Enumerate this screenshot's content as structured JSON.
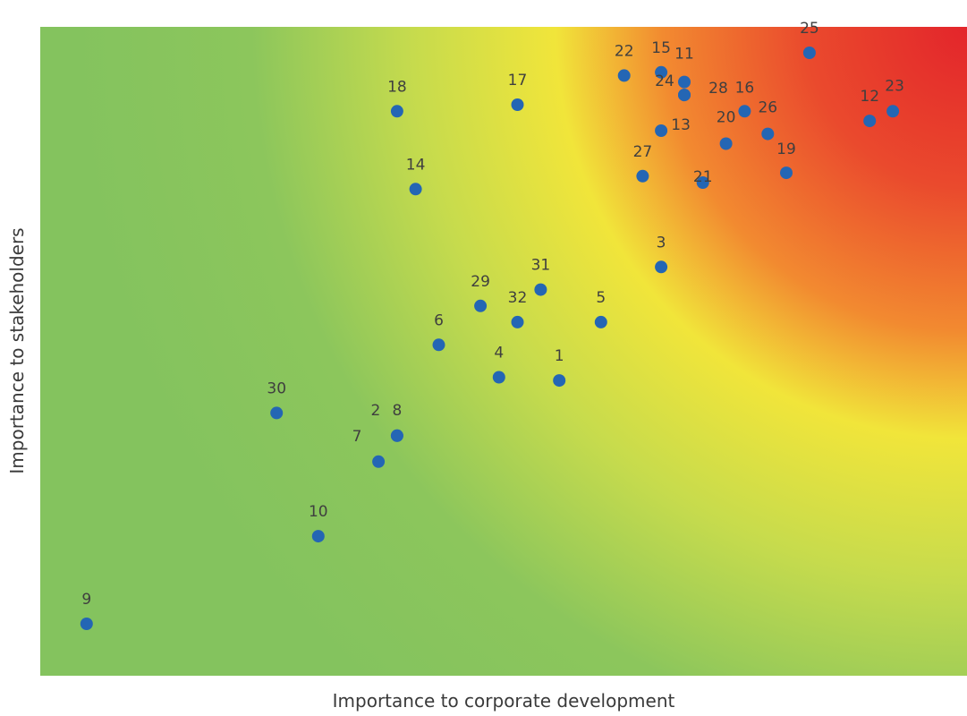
{
  "chart_data": {
    "type": "scatter",
    "title": "",
    "xlabel": "Importance to corporate development",
    "ylabel": "Importance to stakeholders",
    "xlim": [
      0,
      100
    ],
    "ylim": [
      0,
      100
    ],
    "grid": false,
    "legend": "none",
    "background": "heatmap gradient green (low) to yellow to red (high, top-right)",
    "colors": {
      "point": "#2466b4",
      "low": "#86c45e",
      "mid": "#f3ea3c",
      "high": "#e83a2f"
    },
    "points": [
      {
        "label": "1",
        "x": 56.0,
        "y": 45.5
      },
      {
        "label": "2",
        "x": 38.5,
        "y": 37.0
      },
      {
        "label": "3",
        "x": 67.0,
        "y": 63.0
      },
      {
        "label": "4",
        "x": 49.5,
        "y": 46.0
      },
      {
        "label": "5",
        "x": 60.5,
        "y": 54.5
      },
      {
        "label": "6",
        "x": 43.0,
        "y": 51.0
      },
      {
        "label": "7",
        "x": 36.5,
        "y": 33.0
      },
      {
        "label": "8",
        "x": 38.5,
        "y": 37.0
      },
      {
        "label": "9",
        "x": 5.0,
        "y": 8.0
      },
      {
        "label": "10",
        "x": 30.0,
        "y": 21.5
      },
      {
        "label": "11",
        "x": 69.5,
        "y": 91.5
      },
      {
        "label": "12",
        "x": 89.5,
        "y": 85.5
      },
      {
        "label": "13",
        "x": 67.0,
        "y": 84.0
      },
      {
        "label": "14",
        "x": 40.5,
        "y": 75.0
      },
      {
        "label": "15",
        "x": 67.0,
        "y": 93.0
      },
      {
        "label": "16",
        "x": 76.0,
        "y": 87.0
      },
      {
        "label": "17",
        "x": 51.5,
        "y": 88.0
      },
      {
        "label": "18",
        "x": 38.5,
        "y": 87.0
      },
      {
        "label": "19",
        "x": 80.5,
        "y": 77.5
      },
      {
        "label": "20",
        "x": 74.0,
        "y": 82.0
      },
      {
        "label": "21",
        "x": 71.5,
        "y": 76.0
      },
      {
        "label": "22",
        "x": 63.0,
        "y": 92.5
      },
      {
        "label": "23",
        "x": 92.0,
        "y": 87.0
      },
      {
        "label": "24",
        "x": 69.5,
        "y": 89.5
      },
      {
        "label": "25",
        "x": 83.0,
        "y": 96.0
      },
      {
        "label": "26",
        "x": 78.5,
        "y": 83.5
      },
      {
        "label": "27",
        "x": 65.0,
        "y": 77.0
      },
      {
        "label": "28",
        "x": 69.5,
        "y": 89.5
      },
      {
        "label": "29",
        "x": 47.5,
        "y": 57.0
      },
      {
        "label": "30",
        "x": 25.5,
        "y": 40.5
      },
      {
        "label": "31",
        "x": 54.0,
        "y": 59.5
      },
      {
        "label": "32",
        "x": 51.5,
        "y": 54.5
      }
    ]
  }
}
